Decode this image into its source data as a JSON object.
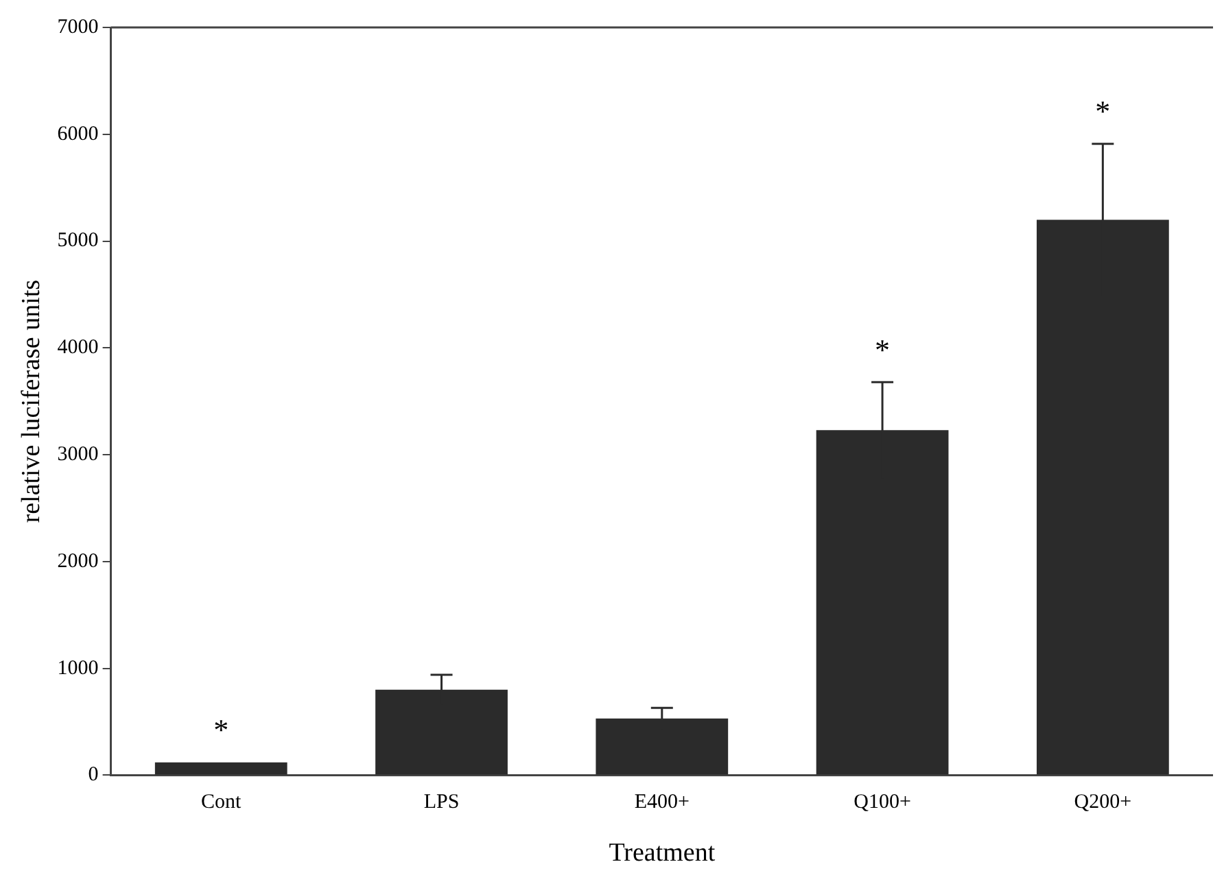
{
  "chart_data": {
    "type": "bar",
    "xlabel": "Treatment",
    "ylabel": "relative luciferase units",
    "categories": [
      "Cont",
      "LPS",
      "E400+",
      "Q100+",
      "Q200+"
    ],
    "values": [
      120,
      800,
      530,
      3230,
      5200
    ],
    "errors": [
      null,
      140,
      100,
      450,
      710
    ],
    "color": "#2b2b2b",
    "ylim": [
      0,
      7000
    ],
    "yticks": [
      0,
      1000,
      2000,
      3000,
      4000,
      5000,
      6000,
      7000
    ],
    "grid": false,
    "legend": false,
    "annotations": [
      {
        "text": "*",
        "x": "Cont",
        "y": 120
      },
      {
        "text": "*",
        "x": "Q100+",
        "y": 3680
      },
      {
        "text": "*",
        "x": "Q200+",
        "y": 5910
      }
    ]
  }
}
